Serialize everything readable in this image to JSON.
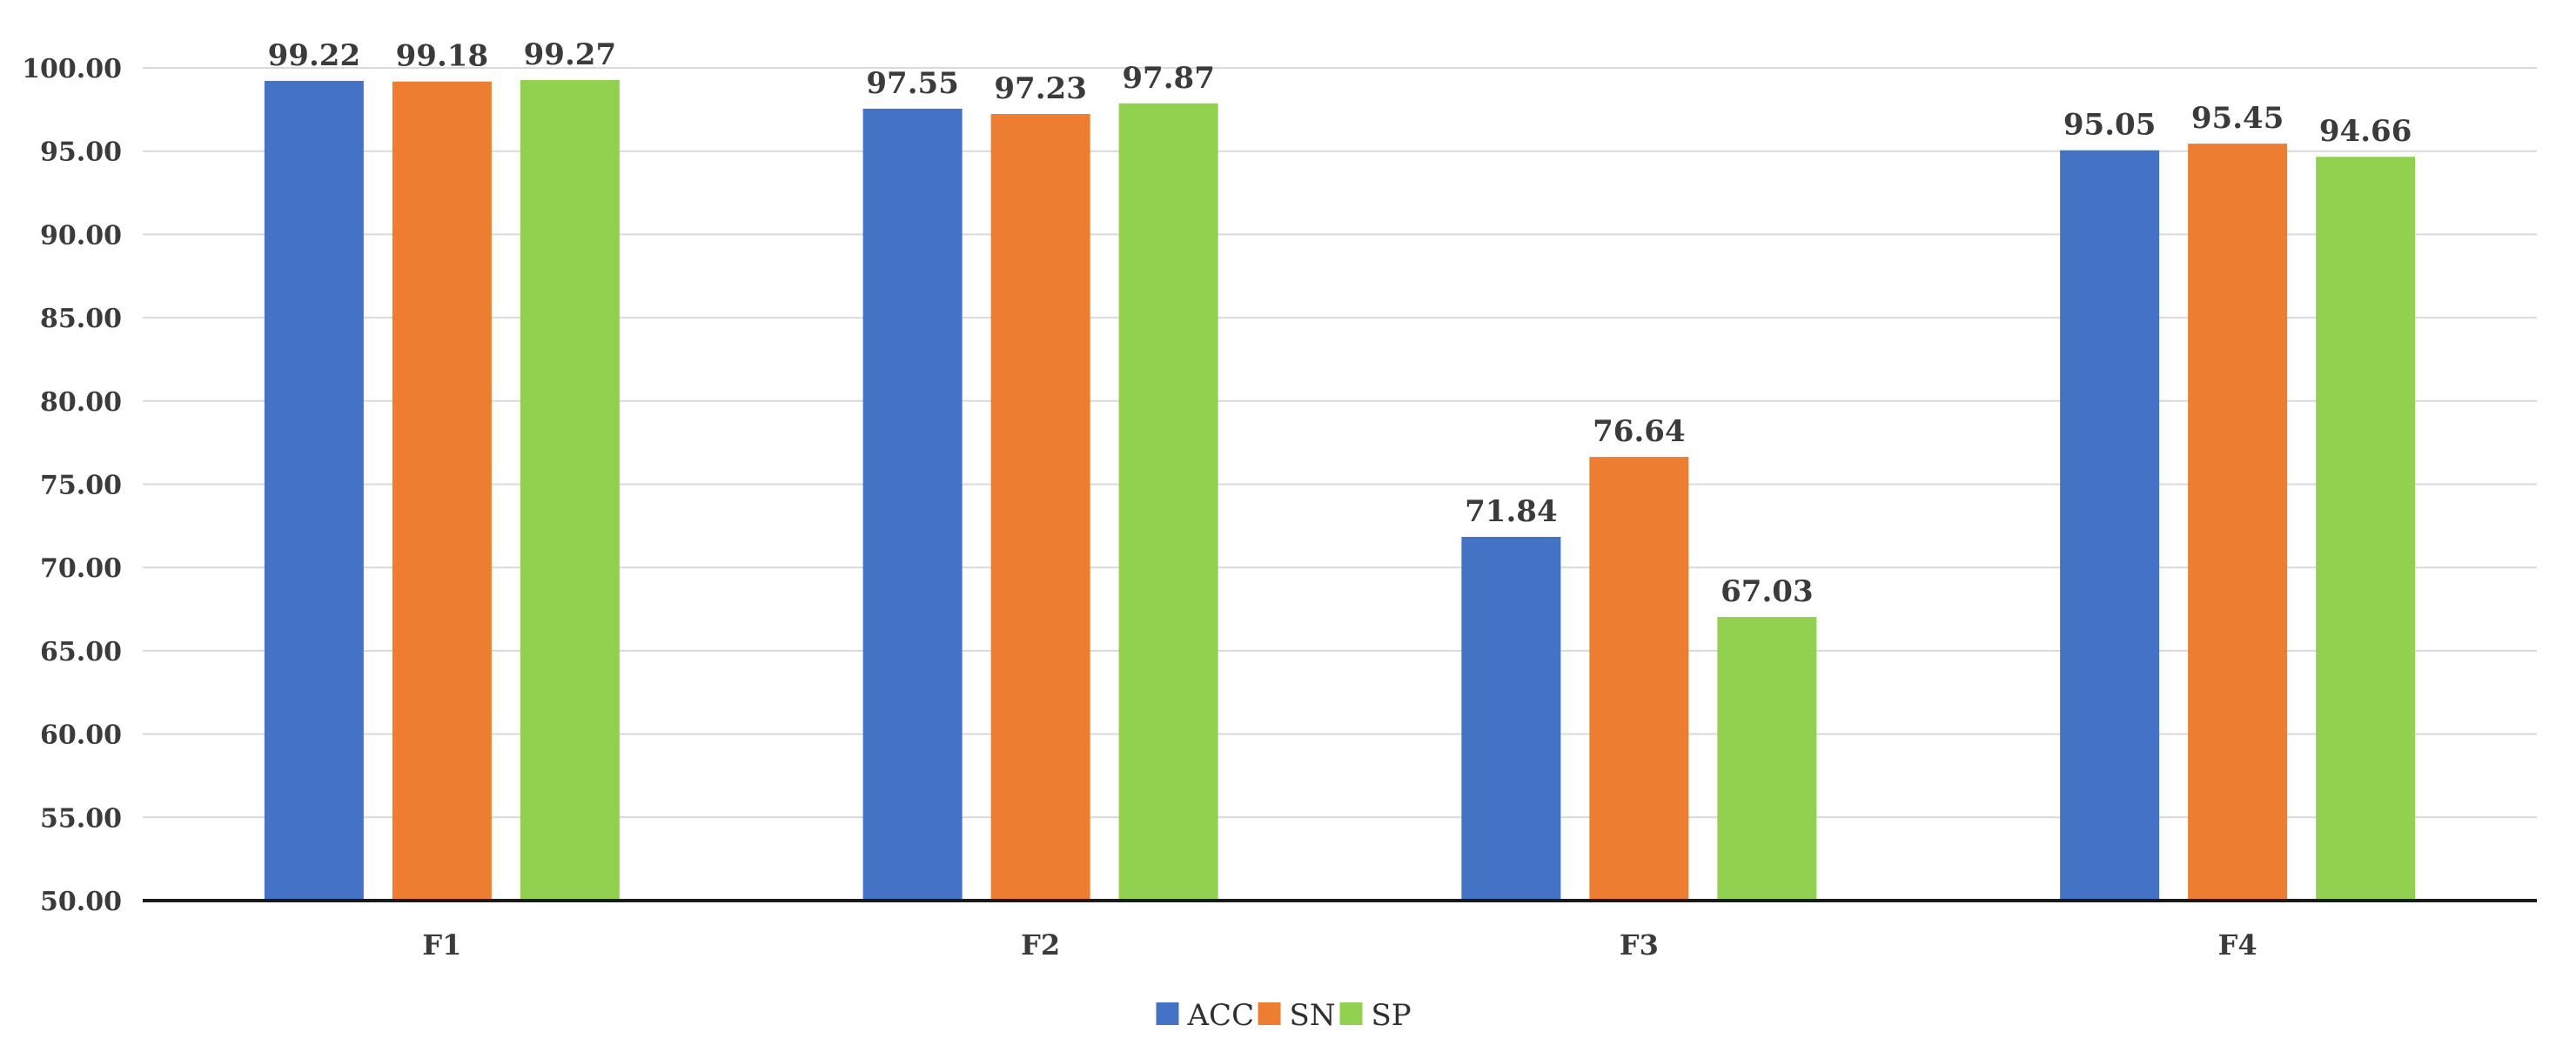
{
  "chart_data": {
    "type": "bar",
    "title": "",
    "xlabel": "",
    "ylabel": "",
    "categories": [
      "F1",
      "F2",
      "F3",
      "F4"
    ],
    "series": [
      {
        "name": "ACC",
        "color": "#4472C4",
        "values": [
          99.22,
          97.55,
          71.84,
          95.05
        ],
        "labels": [
          "99.22",
          "97.55",
          "71.84",
          "95.05"
        ]
      },
      {
        "name": "SN",
        "color": "#ED7D31",
        "values": [
          99.18,
          97.23,
          76.64,
          95.45
        ],
        "labels": [
          "99.18",
          "97.23",
          "76.64",
          "95.45"
        ]
      },
      {
        "name": "SP",
        "color": "#92D050",
        "values": [
          99.27,
          97.87,
          67.03,
          94.66
        ],
        "labels": [
          "99.27",
          "97.87",
          "67.03",
          "94.66"
        ]
      }
    ],
    "ylim": [
      50,
      100
    ],
    "yticks": [
      "50.00",
      "55.00",
      "60.00",
      "65.00",
      "70.00",
      "75.00",
      "80.00",
      "85.00",
      "90.00",
      "95.00",
      "100.00"
    ],
    "grid": true,
    "legend": "bottom-center"
  }
}
